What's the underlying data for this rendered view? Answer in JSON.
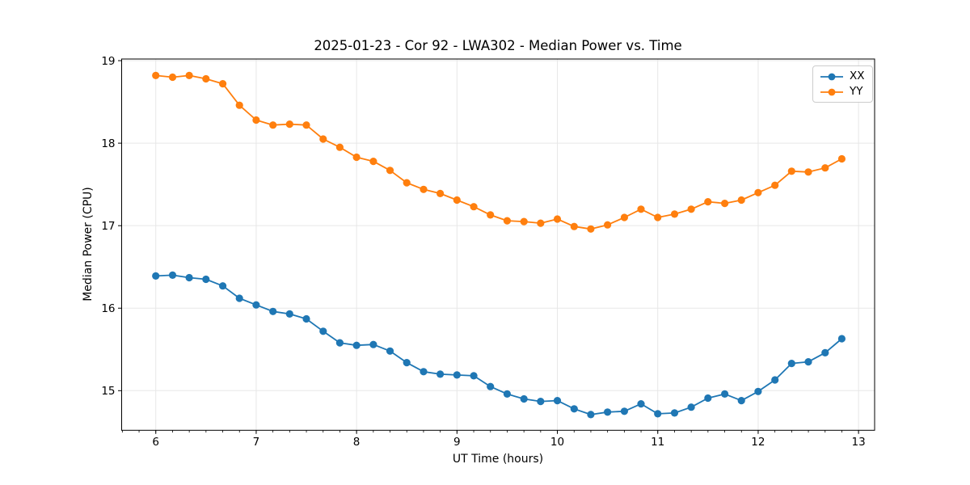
{
  "chart_data": {
    "type": "line",
    "title": "2025-01-23 - Cor 92 - LWA302 - Median Power vs. Time",
    "xlabel": "UT Time (hours)",
    "ylabel": "Median Power (CPU)",
    "xlim": [
      5.66,
      13.16
    ],
    "ylim": [
      14.52,
      19.02
    ],
    "xticks": [
      6,
      7,
      8,
      9,
      10,
      11,
      12,
      13
    ],
    "yticks": [
      15,
      16,
      17,
      18,
      19
    ],
    "x_minor_tick_step_hours": 0.16667,
    "grid": true,
    "legend_position": "upper right",
    "colors": {
      "grid": "#e7e7e7",
      "axis": "#000000",
      "text": "#000000"
    },
    "x": [
      6.0,
      6.167,
      6.333,
      6.5,
      6.667,
      6.833,
      7.0,
      7.167,
      7.333,
      7.5,
      7.667,
      7.833,
      8.0,
      8.167,
      8.333,
      8.5,
      8.667,
      8.833,
      9.0,
      9.167,
      9.333,
      9.5,
      9.667,
      9.833,
      10.0,
      10.167,
      10.333,
      10.5,
      10.667,
      10.833,
      11.0,
      11.167,
      11.333,
      11.5,
      11.667,
      11.833,
      12.0,
      12.167,
      12.333,
      12.5,
      12.667,
      12.833
    ],
    "series": [
      {
        "name": "XX",
        "color": "#1f77b4",
        "values": [
          16.39,
          16.4,
          16.37,
          16.35,
          16.27,
          16.12,
          16.04,
          15.96,
          15.93,
          15.87,
          15.72,
          15.58,
          15.55,
          15.56,
          15.48,
          15.34,
          15.23,
          15.2,
          15.19,
          15.18,
          15.05,
          14.96,
          14.9,
          14.87,
          14.88,
          14.78,
          14.71,
          14.74,
          14.75,
          14.84,
          14.72,
          14.73,
          14.8,
          14.91,
          14.96,
          14.88,
          14.99,
          15.13,
          15.33,
          15.35,
          15.46,
          15.63
        ]
      },
      {
        "name": "YY",
        "color": "#ff7f0e",
        "values": [
          18.82,
          18.8,
          18.82,
          18.78,
          18.72,
          18.46,
          18.28,
          18.22,
          18.23,
          18.22,
          18.05,
          17.95,
          17.83,
          17.78,
          17.67,
          17.52,
          17.44,
          17.39,
          17.31,
          17.23,
          17.13,
          17.06,
          17.05,
          17.03,
          17.08,
          16.99,
          16.96,
          17.01,
          17.1,
          17.2,
          17.1,
          17.14,
          17.2,
          17.29,
          17.27,
          17.31,
          17.4,
          17.49,
          17.66,
          17.65,
          17.7,
          17.81
        ]
      }
    ]
  }
}
